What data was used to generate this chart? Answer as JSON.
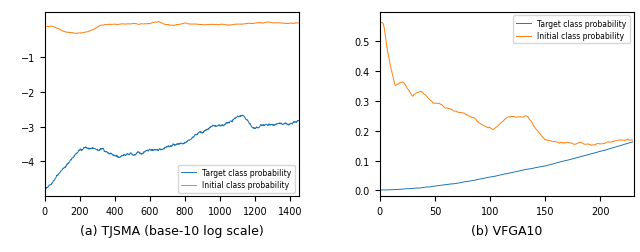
{
  "title_a": "(a) TJSMA (base-10 log scale)",
  "title_b": "(b) VFGA10",
  "legend_target": "Target class probability",
  "legend_initial": "Initial class probability",
  "color_target": "#1f77b4",
  "color_initial": "#ff7f0e",
  "plot_a": {
    "xlim": [
      0,
      1450
    ],
    "ylim": [
      -5.0,
      0.3
    ],
    "yticks": [
      -4,
      -3,
      -2,
      -1
    ],
    "xticks": [
      0,
      200,
      400,
      600,
      800,
      1000,
      1200,
      1400
    ],
    "n_points": 1450
  },
  "plot_b": {
    "xlim": [
      0,
      230
    ],
    "ylim": [
      -0.02,
      0.6
    ],
    "yticks": [
      0.0,
      0.1,
      0.2,
      0.3,
      0.4,
      0.5
    ],
    "xticks": [
      0,
      50,
      100,
      150,
      200
    ],
    "n_points": 230
  }
}
